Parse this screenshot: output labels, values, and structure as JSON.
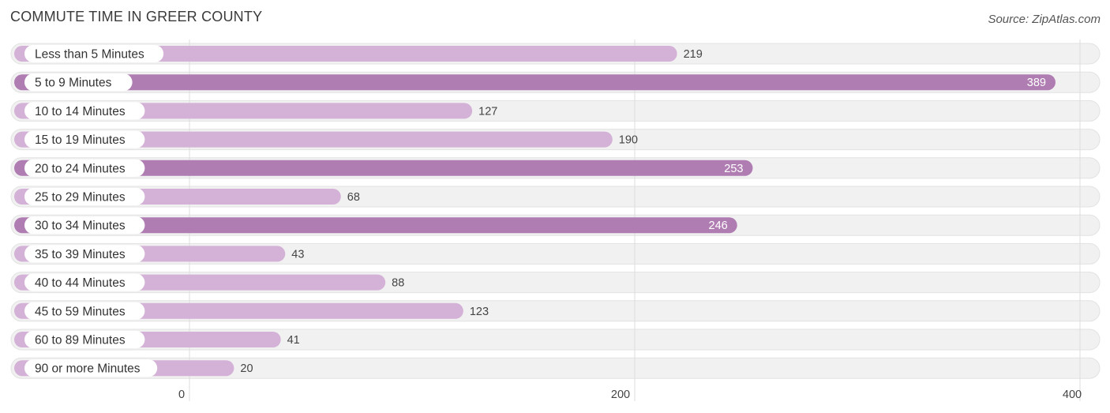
{
  "header": {
    "title": "COMMUTE TIME IN GREER COUNTY",
    "source": "Source: ZipAtlas.com"
  },
  "colors": {
    "bar_strong": "#b07db3",
    "bar_light": "#d4b1d6",
    "track": "#f1f1f1",
    "grid": "#dddddd"
  },
  "chart_data": {
    "type": "bar",
    "orientation": "horizontal",
    "title": "COMMUTE TIME IN GREER COUNTY",
    "categories": [
      "Less than 5 Minutes",
      "5 to 9 Minutes",
      "10 to 14 Minutes",
      "15 to 19 Minutes",
      "20 to 24 Minutes",
      "25 to 29 Minutes",
      "30 to 34 Minutes",
      "35 to 39 Minutes",
      "40 to 44 Minutes",
      "45 to 59 Minutes",
      "60 to 89 Minutes",
      "90 or more Minutes"
    ],
    "values": [
      219,
      389,
      127,
      190,
      253,
      68,
      246,
      43,
      88,
      123,
      41,
      20
    ],
    "xticks": [
      0,
      200,
      400
    ],
    "xlim": [
      0,
      400
    ],
    "grid": true,
    "value_labels": true
  }
}
